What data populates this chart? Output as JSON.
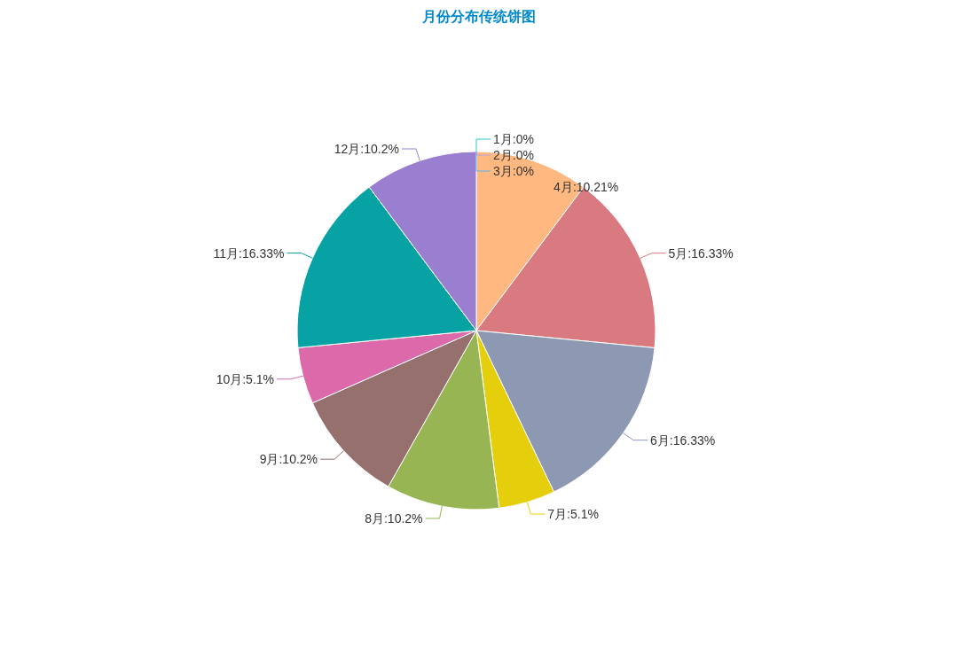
{
  "chart_data": {
    "type": "pie",
    "title": "月份分布传统饼图",
    "categories": [
      "1月",
      "2月",
      "3月",
      "4月",
      "5月",
      "6月",
      "7月",
      "8月",
      "9月",
      "10月",
      "11月",
      "12月"
    ],
    "values": [
      0,
      0,
      0,
      10.21,
      16.33,
      16.33,
      5.1,
      10.2,
      10.2,
      5.1,
      16.33,
      10.2
    ],
    "colors": [
      "#2ec7c9",
      "#b6a2de",
      "#5ab1ef",
      "#ffb980",
      "#d87a80",
      "#8d98b3",
      "#e5cf0d",
      "#97b552",
      "#95706d",
      "#dc69aa",
      "#07a2a4",
      "#9a7fd1"
    ],
    "value_labels": [
      ":0%",
      ":0%",
      ":0%",
      ":10.21%",
      ":16.33%",
      ":16.33%",
      ":5.1%",
      ":10.2%",
      ":10.2%",
      ":5.1%",
      ":16.33%",
      ":10.2%"
    ]
  }
}
